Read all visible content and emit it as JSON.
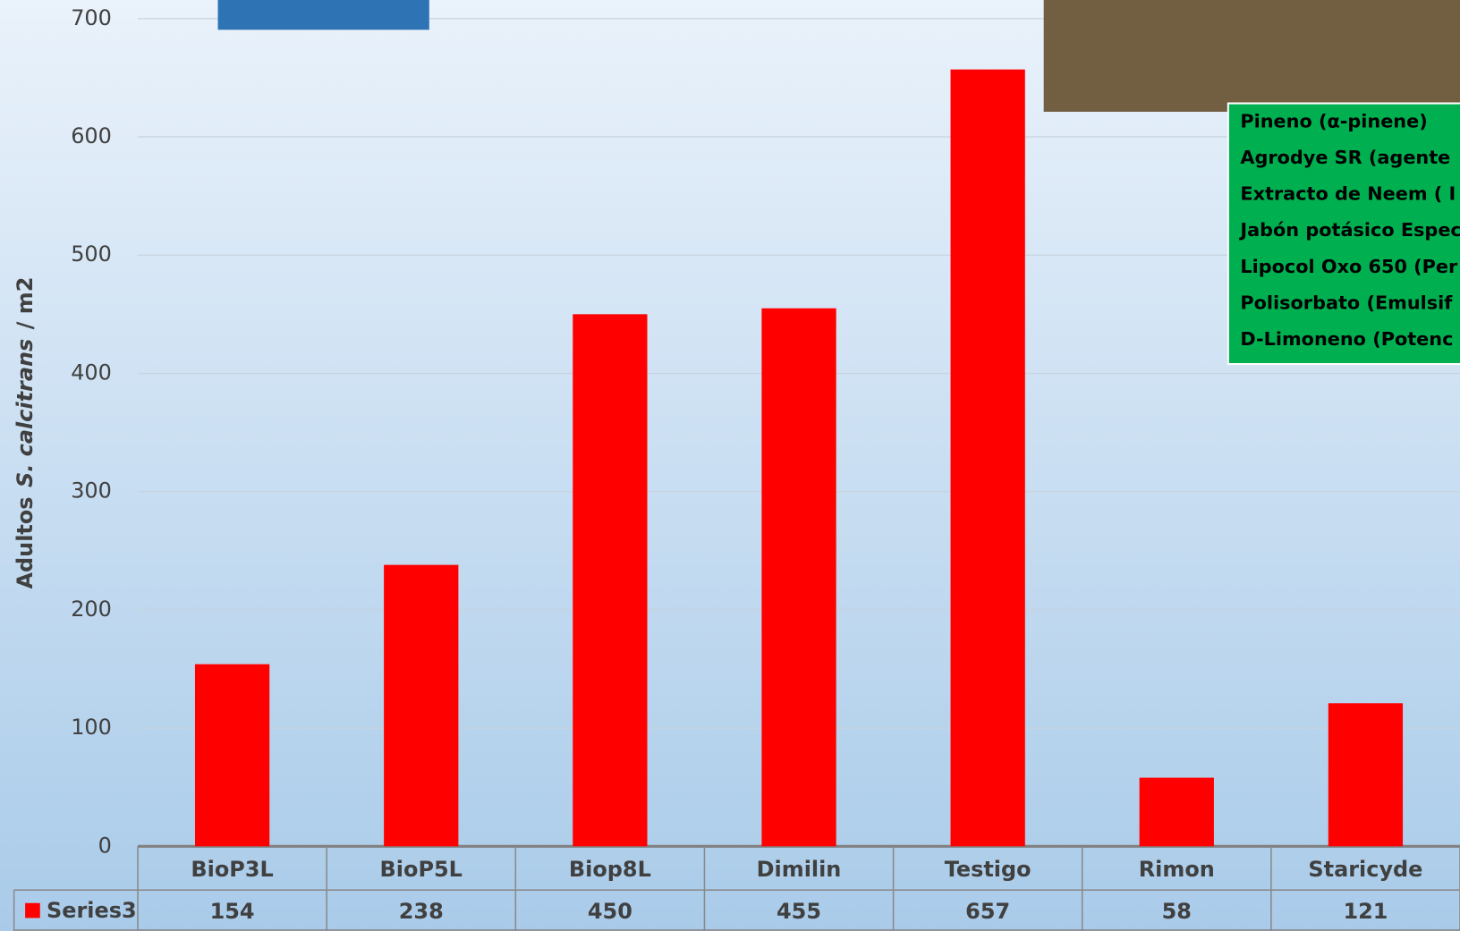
{
  "chart_data": {
    "type": "bar",
    "y_label": {
      "prefix": "Adultos",
      "species": "S. calcitrans",
      "suffix": "/ m2"
    },
    "categories": [
      "BioP3L",
      "BioP5L",
      "Biop8L",
      "Dimilin",
      "Testigo",
      "Rimon",
      "Staricyde"
    ],
    "series": [
      {
        "name": "Series3",
        "color": "#ff0000",
        "values": [
          154,
          238,
          450,
          455,
          657,
          58,
          121
        ]
      }
    ],
    "ylim": [
      0,
      700
    ],
    "yticks": [
      0,
      100,
      200,
      300,
      400,
      500,
      600,
      700
    ],
    "grid": true,
    "data_table": true
  },
  "legend_box": {
    "lines": [
      "Pineno (α-pinene)",
      "Agrodye SR (agente",
      "Extracto de Neem ( I",
      "Jabón potásico Espec",
      "Lipocol Oxo 650 (Per",
      "Polisorbato (Emulsif",
      "D-Limoneno (Potenc"
    ]
  }
}
